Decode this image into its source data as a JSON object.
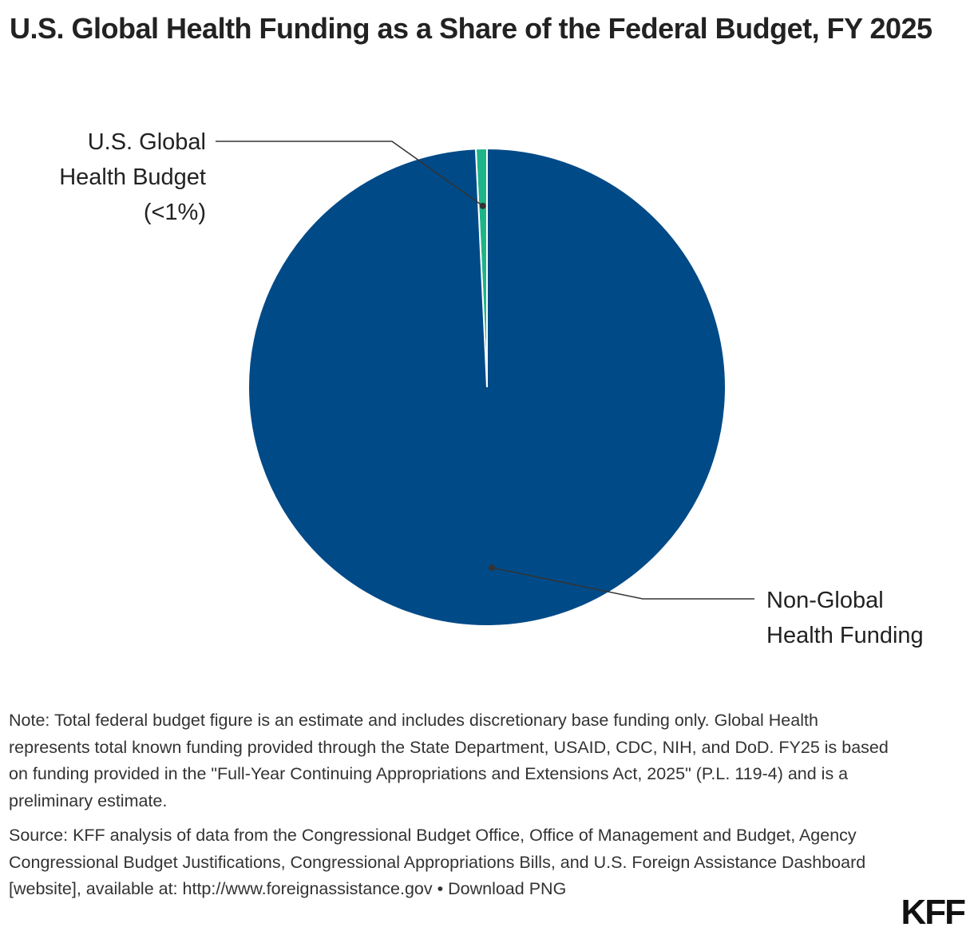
{
  "title": "U.S. Global Health Funding as a Share of the Federal Budget, FY 2025",
  "chart_data": {
    "type": "pie",
    "title": "U.S. Global Health Funding as a Share of the Federal Budget, FY 2025",
    "slices": [
      {
        "label": "U.S. Global Health Budget (<1%)",
        "label_lines": [
          "U.S. Global",
          "Health Budget",
          "(<1%)"
        ],
        "value": 0.75,
        "color": "#1db588"
      },
      {
        "label": "Non-Global Health Funding",
        "label_lines": [
          "Non-Global",
          "Health Funding"
        ],
        "value": 99.25,
        "color": "#004a87"
      }
    ],
    "start": "top",
    "direction": "counterclockwise"
  },
  "notes": {
    "note": "Note: Total federal budget figure is an estimate and includes discretionary base funding only. Global Health represents total known funding provided through the State Department, USAID, CDC, NIH, and DoD. FY25 is based on funding provided in the \"Full-Year Continuing Appropriations and Extensions Act, 2025\" (P.L. 119-4) and is a preliminary estimate.",
    "source": "Source: KFF analysis of data from the Congressional Budget Office, Office of Management and Budget, Agency Congressional Budget Justifications, Congressional Appropriations Bills, and U.S. Foreign Assistance Dashboard [website], available at: http://www.foreignassistance.gov",
    "separator": " • ",
    "download": "Download PNG"
  },
  "logo": "KFF"
}
